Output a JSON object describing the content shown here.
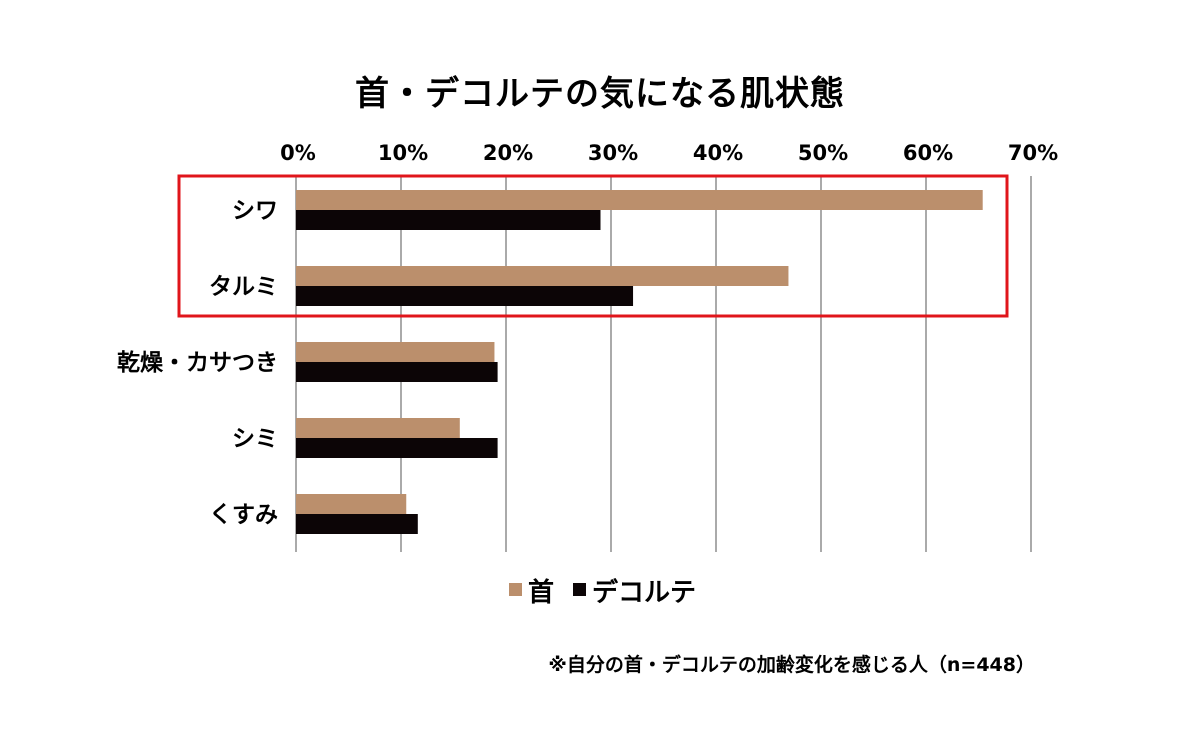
{
  "chart_data": {
    "type": "bar",
    "orientation": "horizontal",
    "title": "首・デコルテの気になる肌状態",
    "categories": [
      "シワ",
      "タルミ",
      "乾燥・カサつき",
      "シミ",
      "くすみ"
    ],
    "series": [
      {
        "name": "首",
        "color": "#bb8f6c",
        "values": [
          65.4,
          46.9,
          18.9,
          15.6,
          10.5
        ]
      },
      {
        "name": "デコルテ",
        "color": "#0c0506",
        "values": [
          29.0,
          32.1,
          19.2,
          19.2,
          11.6
        ]
      }
    ],
    "xlim": [
      0,
      70
    ],
    "x_ticks": [
      "0%",
      "10%",
      "20%",
      "30%",
      "40%",
      "50%",
      "60%",
      "70%"
    ],
    "grid": true,
    "legend_position": "bottom",
    "highlight": {
      "categories": [
        "シワ",
        "タルミ"
      ],
      "color": "#e0151b"
    }
  },
  "note": "※自分の首・デコルテの加齢変化を感じる人（n=448）"
}
